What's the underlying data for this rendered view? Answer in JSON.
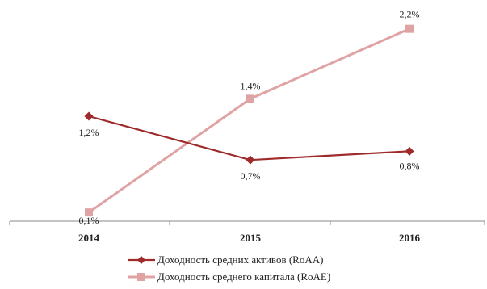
{
  "chart_data": {
    "type": "line",
    "categories": [
      "2014",
      "2015",
      "2016"
    ],
    "series": [
      {
        "name": "Доходность средних активов (RoAA)",
        "values": [
          1.2,
          0.7,
          0.8
        ],
        "labels": [
          "1,2%",
          "0,7%",
          "0,8%"
        ],
        "color": "#9e2a2b",
        "marker": "diamond"
      },
      {
        "name": "Доходность среднего капитала (RoAE)",
        "values": [
          0.1,
          1.4,
          2.2
        ],
        "labels": [
          "0,1%",
          "1,4%",
          "2,2%"
        ],
        "color": "#e0a3a3",
        "marker": "square"
      }
    ],
    "title": "",
    "xlabel": "",
    "ylabel": "",
    "ylim": [
      0,
      2.4
    ],
    "grid": false,
    "legend_position": "bottom"
  }
}
